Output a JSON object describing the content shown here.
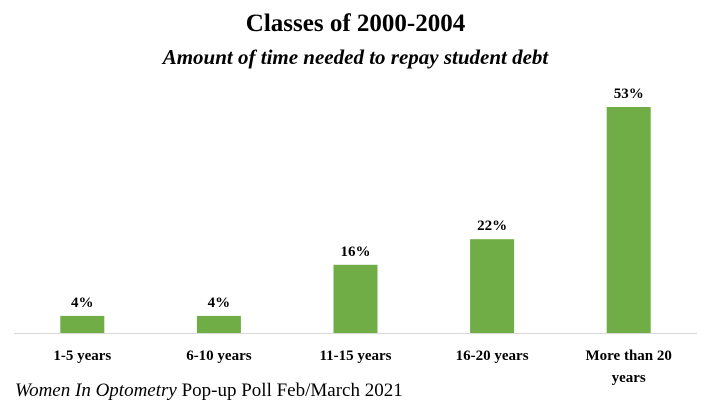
{
  "chart_data": {
    "type": "bar",
    "title": "Classes of 2000-2004",
    "subtitle": "Amount of time needed to repay student debt",
    "categories": [
      "1-5 years",
      "6-10 years",
      "11-15 years",
      "16-20 years",
      "More than 20 years"
    ],
    "category_lines": [
      [
        "1-5 years"
      ],
      [
        "6-10 years"
      ],
      [
        "11-15 years"
      ],
      [
        "16-20 years"
      ],
      [
        "More than 20",
        "years"
      ]
    ],
    "values": [
      4,
      4,
      16,
      22,
      53
    ],
    "data_labels": [
      "4%",
      "4%",
      "16%",
      "22%",
      "53%"
    ],
    "unit": "%",
    "ylim": [
      0,
      53
    ],
    "grid": false,
    "legend": "none",
    "bar_color": "#70ad47",
    "axis_color": "#d9d9d9"
  },
  "footer": {
    "italic": "Women In Optometry",
    "rest": " Pop-up Poll Feb/March 2021"
  }
}
